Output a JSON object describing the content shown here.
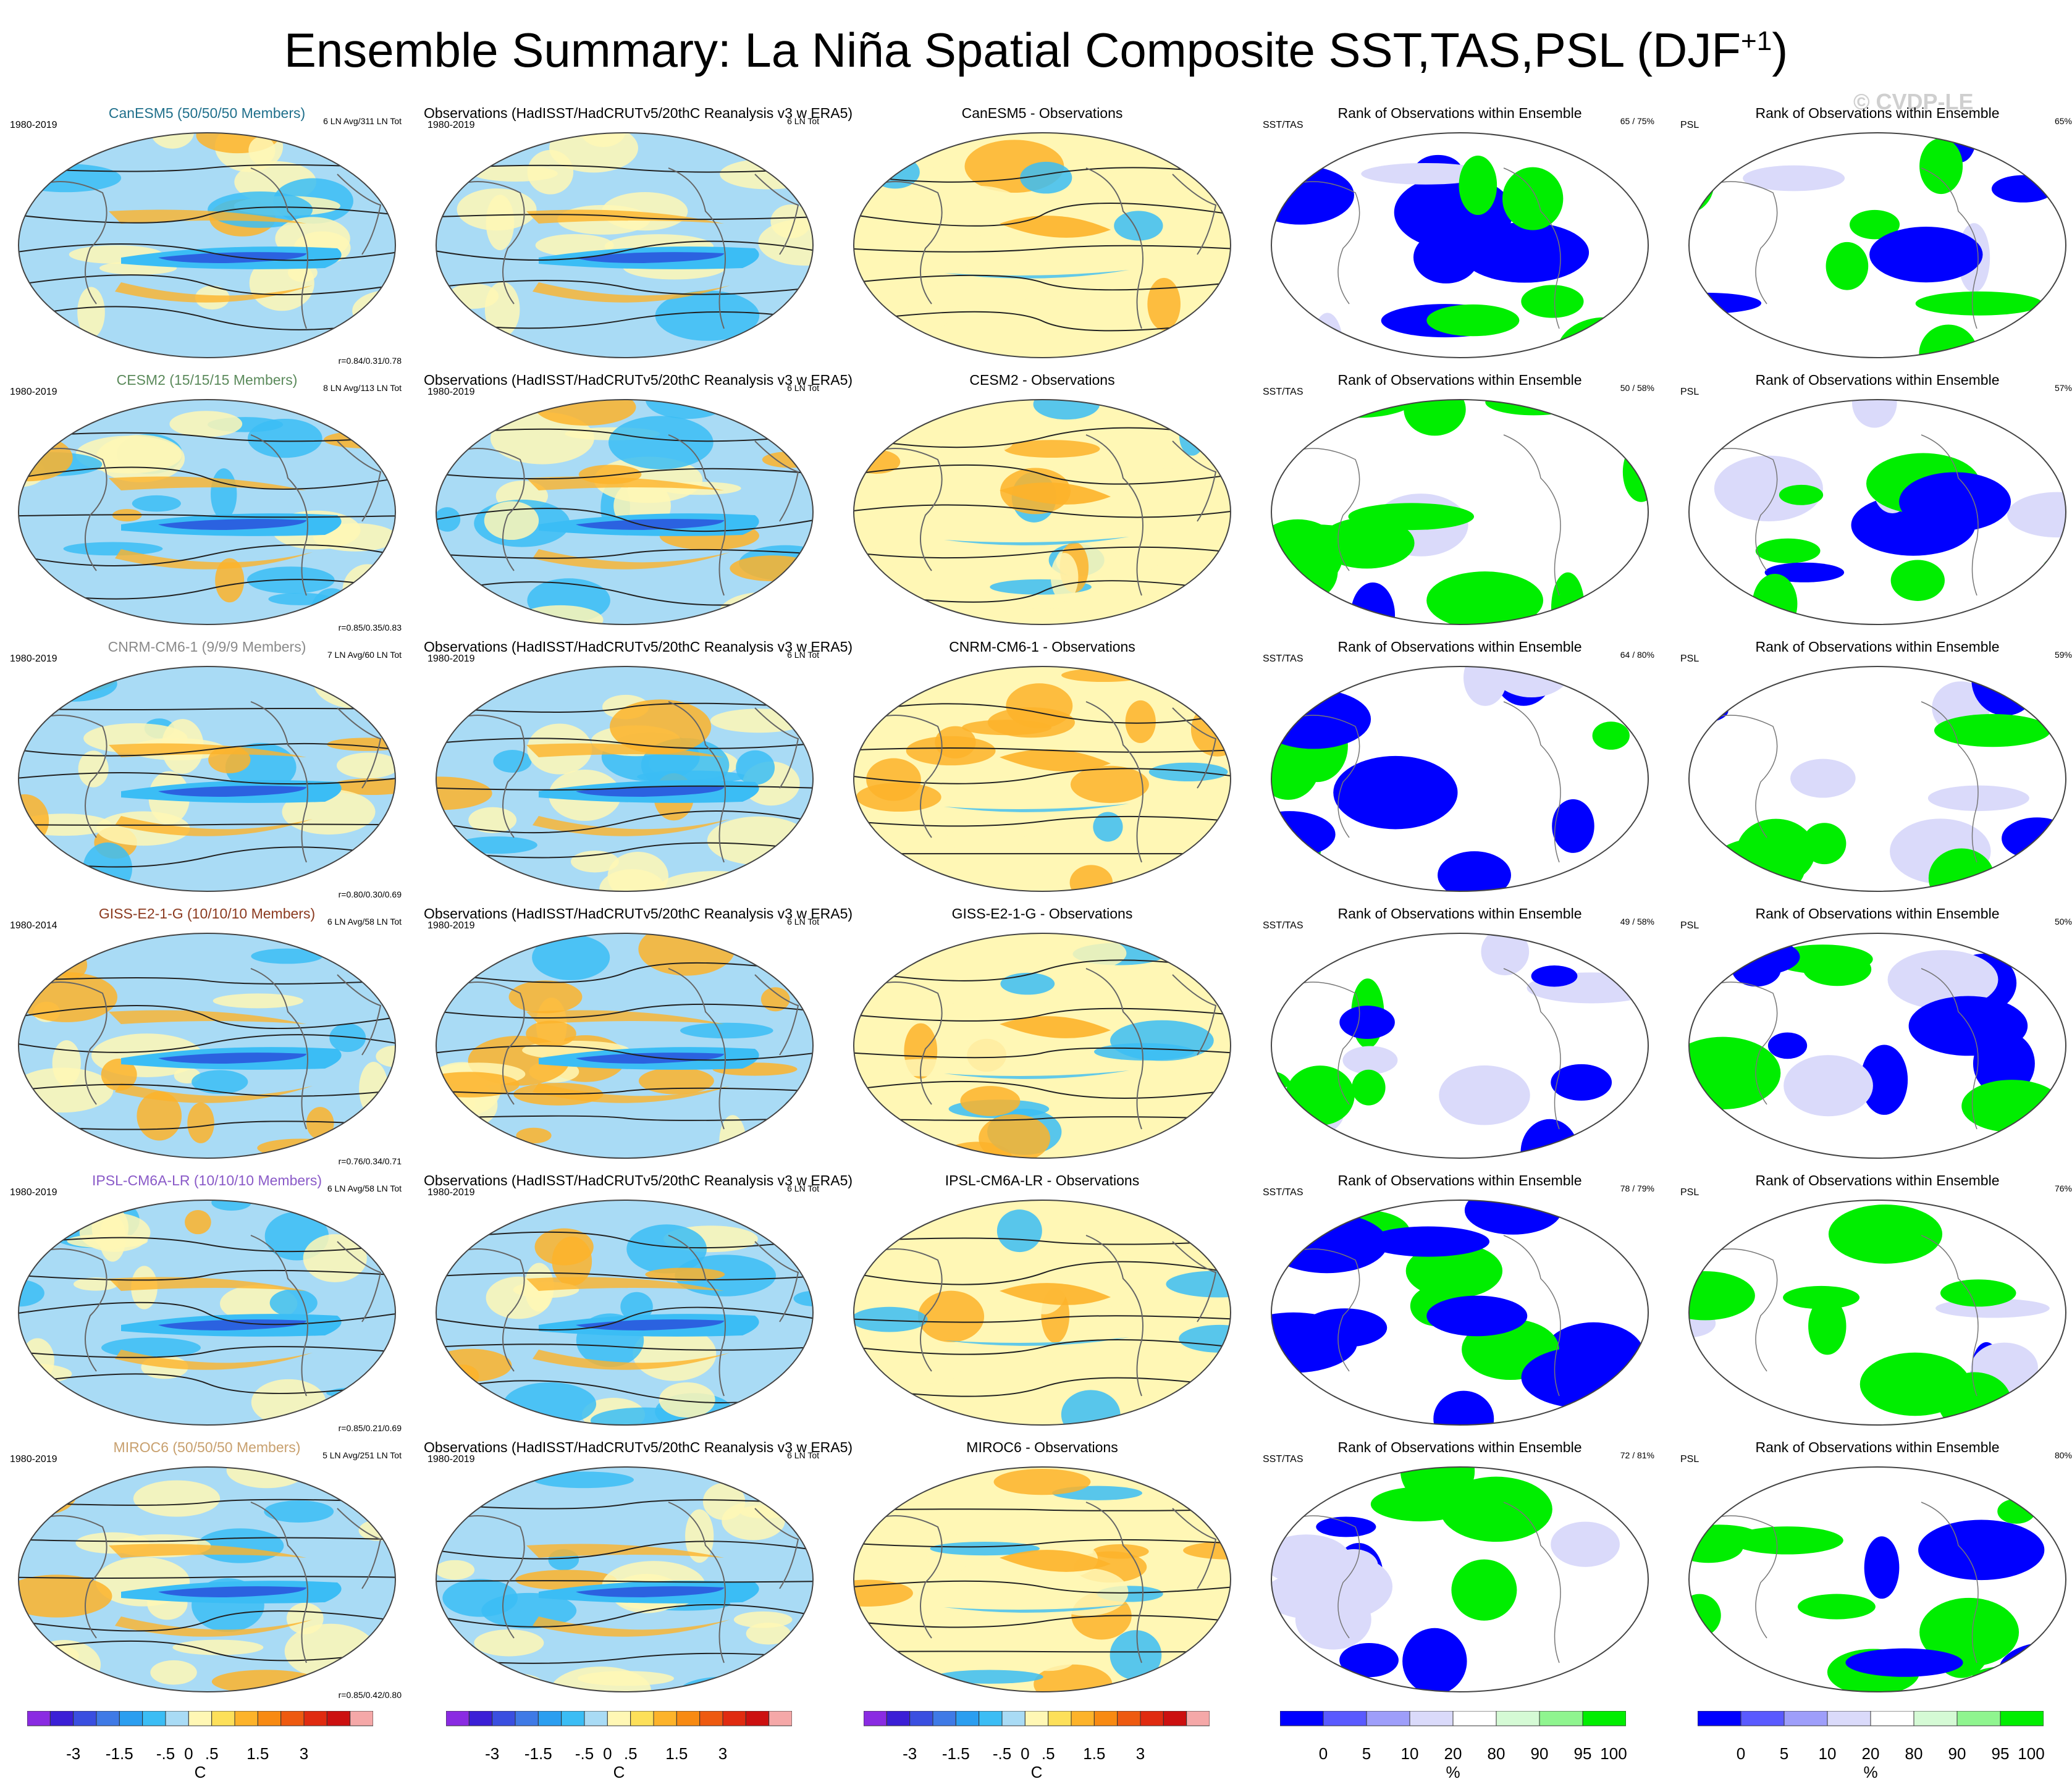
{
  "title": "Ensemble Summary: La Niña Spatial Composite SST,TAS,PSL (DJF",
  "title_sup": "+1",
  "title_close": ")",
  "watermark": "© CVDP-LE",
  "rows": [
    {
      "model": {
        "title": "CanESM5 (50/50/50 Members)",
        "title_color": "#1f6f8b",
        "period": "1980-2019",
        "info": "6 LN Avg/311 LN Tot",
        "corr": "r=0.84/0.31/0.78"
      },
      "obs": {
        "title": "Observations (HadISST/HadCRUTv5/20thC Reanalysis v3 w ERA5)",
        "period": "1980-2019",
        "info": "6 LN Tot"
      },
      "diff": {
        "title": "CanESM5 - Observations"
      },
      "rank_sst": {
        "title": "Rank of Observations within Ensemble",
        "var": "SST/TAS",
        "pct": "65 /  75%"
      },
      "rank_psl": {
        "title": "Rank of Observations within Ensemble",
        "var": "PSL",
        "pct": "65%"
      }
    },
    {
      "model": {
        "title": "CESM2 (15/15/15 Members)",
        "title_color": "#5b8a5b",
        "period": "1980-2019",
        "info": "8 LN Avg/113 LN Tot",
        "corr": "r=0.85/0.35/0.83"
      },
      "obs": {
        "title": "Observations (HadISST/HadCRUTv5/20thC Reanalysis v3 w ERA5)",
        "period": "1980-2019",
        "info": "6 LN Tot"
      },
      "diff": {
        "title": "CESM2 - Observations"
      },
      "rank_sst": {
        "title": "Rank of Observations within Ensemble",
        "var": "SST/TAS",
        "pct": "50 /  58%"
      },
      "rank_psl": {
        "title": "Rank of Observations within Ensemble",
        "var": "PSL",
        "pct": "57%"
      }
    },
    {
      "model": {
        "title": "CNRM-CM6-1 (9/9/9 Members)",
        "title_color": "#8a8a8a",
        "period": "1980-2019",
        "info": "7 LN Avg/60 LN Tot",
        "corr": "r=0.80/0.30/0.69"
      },
      "obs": {
        "title": "Observations (HadISST/HadCRUTv5/20thC Reanalysis v3 w ERA5)",
        "period": "1980-2019",
        "info": "6 LN Tot"
      },
      "diff": {
        "title": "CNRM-CM6-1 - Observations"
      },
      "rank_sst": {
        "title": "Rank of Observations within Ensemble",
        "var": "SST/TAS",
        "pct": "64 /  80%"
      },
      "rank_psl": {
        "title": "Rank of Observations within Ensemble",
        "var": "PSL",
        "pct": "59%"
      }
    },
    {
      "model": {
        "title": "GISS-E2-1-G (10/10/10 Members)",
        "title_color": "#8b3a1f",
        "period": "1980-2014",
        "info": "6 LN Avg/58 LN Tot",
        "corr": "r=0.76/0.34/0.71"
      },
      "obs": {
        "title": "Observations (HadISST/HadCRUTv5/20thC Reanalysis v3 w ERA5)",
        "period": "1980-2019",
        "info": "6 LN Tot"
      },
      "diff": {
        "title": "GISS-E2-1-G - Observations"
      },
      "rank_sst": {
        "title": "Rank of Observations within Ensemble",
        "var": "SST/TAS",
        "pct": "49 /  58%"
      },
      "rank_psl": {
        "title": "Rank of Observations within Ensemble",
        "var": "PSL",
        "pct": "50%"
      }
    },
    {
      "model": {
        "title": "IPSL-CM6A-LR (10/10/10 Members)",
        "title_color": "#8a5ac8",
        "period": "1980-2019",
        "info": "6 LN Avg/58 LN Tot",
        "corr": "r=0.85/0.21/0.69"
      },
      "obs": {
        "title": "Observations (HadISST/HadCRUTv5/20thC Reanalysis v3 w ERA5)",
        "period": "1980-2019",
        "info": "6 LN Tot"
      },
      "diff": {
        "title": "IPSL-CM6A-LR - Observations"
      },
      "rank_sst": {
        "title": "Rank of Observations within Ensemble",
        "var": "SST/TAS",
        "pct": "78 /  79%"
      },
      "rank_psl": {
        "title": "Rank of Observations within Ensemble",
        "var": "PSL",
        "pct": "76%"
      }
    },
    {
      "model": {
        "title": "MIROC6 (50/50/50 Members)",
        "title_color": "#c8a06e",
        "period": "1980-2019",
        "info": "5 LN Avg/251 LN Tot",
        "corr": "r=0.85/0.42/0.80"
      },
      "obs": {
        "title": "Observations (HadISST/HadCRUTv5/20thC Reanalysis v3 w ERA5)",
        "period": "1980-2019",
        "info": "6 LN Tot"
      },
      "diff": {
        "title": "MIROC6 - Observations"
      },
      "rank_sst": {
        "title": "Rank of Observations within Ensemble",
        "var": "SST/TAS",
        "pct": "72 /  81%"
      },
      "rank_psl": {
        "title": "Rank of Observations within Ensemble",
        "var": "PSL",
        "pct": "80%"
      }
    }
  ],
  "colorbars": {
    "temp": {
      "colors": [
        "#8a2be2",
        "#3b1fd6",
        "#3a4fe0",
        "#3f7ae6",
        "#2b9ef0",
        "#3bbdf5",
        "#a9dbf5",
        "#fff7b5",
        "#fde05a",
        "#fdb32a",
        "#f88a12",
        "#ee5a10",
        "#e02b10",
        "#cc1010",
        "#f5a8a8"
      ],
      "labels": [
        "-3",
        "-1.5",
        "-.5",
        "0",
        ".5",
        "1.5",
        "3"
      ],
      "unit": "C"
    },
    "rank": {
      "colors": [
        "#0000ff",
        "#5a5aff",
        "#9e9efa",
        "#dadafa",
        "#ffffff",
        "#d5fad5",
        "#8ff58f",
        "#00ee00"
      ],
      "labels": [
        "0",
        "5",
        "10",
        "20",
        "80",
        "90",
        "95",
        "100"
      ],
      "unit": "%"
    }
  },
  "legend": {
    "map_colors": {
      "ocean_neg": "#a9dbf5",
      "tongue": "#3bbdf5",
      "cold_core": "#2b62e0",
      "warm": "#fff7b5",
      "warm2": "#fdb32a",
      "land_line": "#666666"
    }
  }
}
